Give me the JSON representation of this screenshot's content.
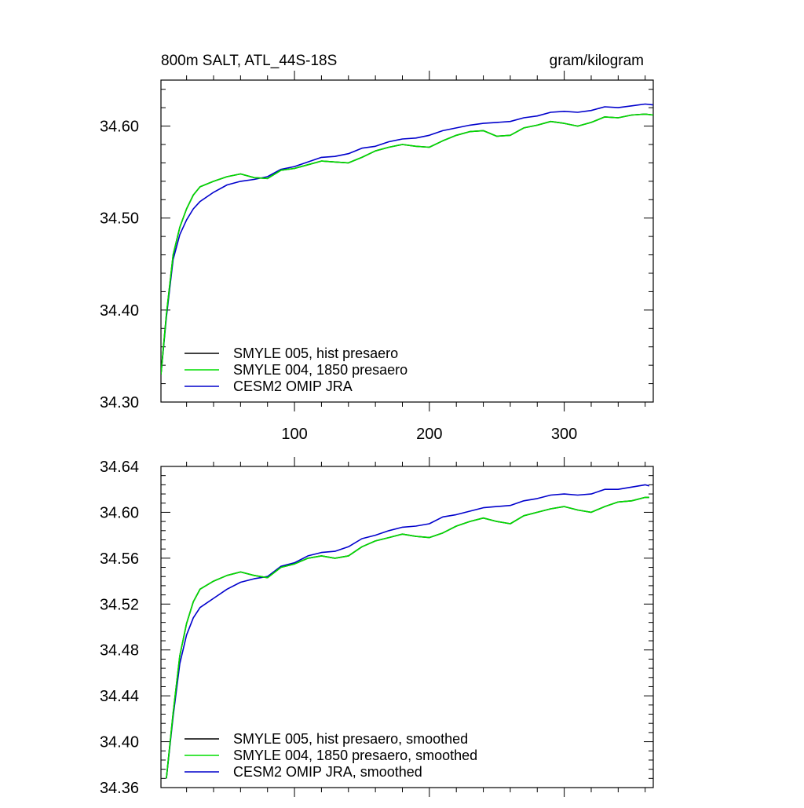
{
  "chart_data": [
    {
      "type": "line",
      "title": "800m SALT, ATL_44S-18S",
      "units": "gram/kilogram",
      "xlim": [
        1,
        366
      ],
      "ylim": [
        34.3,
        34.65
      ],
      "xticks": [
        100,
        200,
        300
      ],
      "xtick_labels": [
        "100",
        "200",
        "300"
      ],
      "yticks": [
        34.3,
        34.4,
        34.5,
        34.6
      ],
      "ytick_labels": [
        "34.30",
        "34.40",
        "34.50",
        "34.60"
      ],
      "grid": false,
      "legend_position": "bottom-left",
      "x": [
        1,
        5,
        10,
        15,
        20,
        25,
        30,
        40,
        50,
        60,
        70,
        80,
        90,
        100,
        110,
        120,
        130,
        140,
        150,
        160,
        170,
        180,
        190,
        200,
        210,
        220,
        230,
        240,
        250,
        260,
        270,
        280,
        290,
        300,
        310,
        320,
        330,
        340,
        350,
        360,
        366
      ],
      "series": [
        {
          "name": "SMYLE 005, hist presaero",
          "color": "#000000",
          "values": [
            34.33,
            34.395,
            34.46,
            34.49,
            34.51,
            34.525,
            34.534,
            34.54,
            34.545,
            34.548,
            34.544,
            34.543,
            34.552,
            34.554,
            34.558,
            34.562,
            34.561,
            34.56,
            34.566,
            34.573,
            34.577,
            34.58,
            34.578,
            34.577,
            34.584,
            34.59,
            34.594,
            34.595,
            34.589,
            34.59,
            34.598,
            34.601,
            34.605,
            34.603,
            34.6,
            34.604,
            34.61,
            34.609,
            34.612,
            34.613,
            34.612
          ]
        },
        {
          "name": "SMYLE 004, 1850 presaero",
          "color": "#00dd00",
          "values": [
            34.33,
            34.395,
            34.46,
            34.49,
            34.51,
            34.525,
            34.534,
            34.54,
            34.545,
            34.548,
            34.544,
            34.543,
            34.552,
            34.554,
            34.558,
            34.562,
            34.561,
            34.56,
            34.566,
            34.573,
            34.577,
            34.58,
            34.578,
            34.577,
            34.584,
            34.59,
            34.594,
            34.595,
            34.589,
            34.59,
            34.598,
            34.601,
            34.605,
            34.603,
            34.6,
            34.604,
            34.61,
            34.609,
            34.612,
            34.613,
            34.612
          ]
        },
        {
          "name": "CESM2 OMIP JRA",
          "color": "#0000cc",
          "values": [
            34.33,
            34.392,
            34.455,
            34.482,
            34.498,
            34.51,
            34.518,
            34.528,
            34.536,
            34.54,
            34.542,
            34.545,
            34.553,
            34.556,
            34.561,
            34.566,
            34.567,
            34.57,
            34.576,
            34.578,
            34.583,
            34.586,
            34.587,
            34.59,
            34.595,
            34.598,
            34.601,
            34.603,
            34.604,
            34.605,
            34.609,
            34.611,
            34.615,
            34.616,
            34.615,
            34.617,
            34.621,
            34.62,
            34.622,
            34.624,
            34.623
          ]
        }
      ]
    },
    {
      "type": "line",
      "title": "",
      "xlim": [
        1,
        366
      ],
      "ylim": [
        34.36,
        34.64
      ],
      "xticks": [
        100,
        200,
        300
      ],
      "yticks": [
        34.36,
        34.4,
        34.44,
        34.48,
        34.52,
        34.56,
        34.6,
        34.64
      ],
      "ytick_labels": [
        "34.36",
        "34.40",
        "34.44",
        "34.48",
        "34.52",
        "34.56",
        "34.60",
        "34.64"
      ],
      "grid": false,
      "legend_position": "bottom-left",
      "x": [
        5,
        10,
        15,
        20,
        25,
        30,
        40,
        50,
        60,
        70,
        80,
        90,
        100,
        110,
        120,
        130,
        140,
        150,
        160,
        170,
        180,
        190,
        200,
        210,
        220,
        230,
        240,
        250,
        260,
        270,
        280,
        290,
        300,
        310,
        320,
        330,
        340,
        350,
        360,
        363
      ],
      "series": [
        {
          "name": "SMYLE 005, hist presaero, smoothed",
          "color": "#000000",
          "values": [
            34.368,
            34.425,
            34.475,
            34.503,
            34.522,
            34.533,
            34.54,
            34.545,
            34.548,
            34.545,
            34.543,
            34.552,
            34.555,
            34.56,
            34.562,
            34.56,
            34.562,
            34.57,
            34.575,
            34.578,
            34.581,
            34.579,
            34.578,
            34.582,
            34.588,
            34.592,
            34.595,
            34.592,
            34.59,
            34.597,
            34.6,
            34.603,
            34.605,
            34.602,
            34.6,
            34.605,
            34.609,
            34.61,
            34.613,
            34.613
          ]
        },
        {
          "name": "SMYLE 004, 1850 presaero, smoothed",
          "color": "#00dd00",
          "values": [
            34.368,
            34.425,
            34.475,
            34.503,
            34.522,
            34.533,
            34.54,
            34.545,
            34.548,
            34.545,
            34.543,
            34.552,
            34.555,
            34.56,
            34.562,
            34.56,
            34.562,
            34.57,
            34.575,
            34.578,
            34.581,
            34.579,
            34.578,
            34.582,
            34.588,
            34.592,
            34.595,
            34.592,
            34.59,
            34.597,
            34.6,
            34.603,
            34.605,
            34.602,
            34.6,
            34.605,
            34.609,
            34.61,
            34.613,
            34.613
          ]
        },
        {
          "name": "CESM2 OMIP JRA, smoothed",
          "color": "#0000cc",
          "values": [
            34.368,
            34.422,
            34.468,
            34.493,
            34.508,
            34.517,
            34.525,
            34.533,
            34.539,
            34.542,
            34.544,
            34.553,
            34.556,
            34.562,
            34.565,
            34.566,
            34.57,
            34.577,
            34.58,
            34.584,
            34.587,
            34.588,
            34.59,
            34.596,
            34.598,
            34.601,
            34.604,
            34.605,
            34.606,
            34.61,
            34.612,
            34.615,
            34.616,
            34.615,
            34.616,
            34.62,
            34.62,
            34.622,
            34.624,
            34.623
          ]
        }
      ]
    }
  ]
}
